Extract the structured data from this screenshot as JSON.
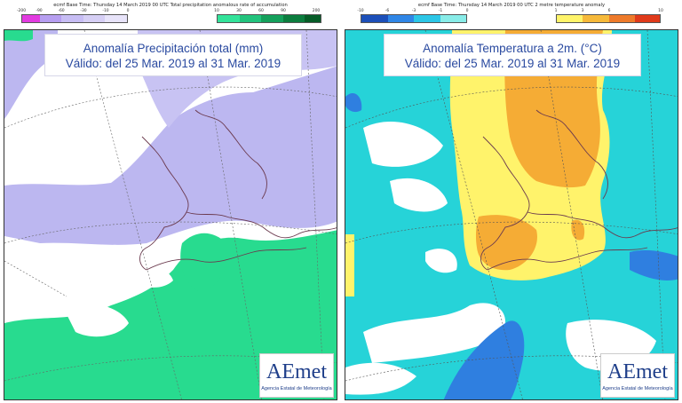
{
  "precipitation": {
    "header": "ecmf  Base Time: Thursday 14 March 2019 00 UTC Total precipitation anomalous rate of accumulation",
    "legend_ticks": [
      "-200",
      "-90",
      "-60",
      "-30",
      "-10",
      "0",
      "10",
      "30",
      "60",
      "90",
      "200"
    ],
    "legend_colors_negative": [
      "#e23be0",
      "#b69ef0",
      "#c7bdf4",
      "#d6cff5",
      "#e8e4fa"
    ],
    "legend_colors_positive": [
      "#33e39a",
      "#22c37d",
      "#14a05b",
      "#0b7d3e",
      "#065c27"
    ],
    "title_line1": "Anomalía Precipitación total (mm)",
    "title_line2": "Válido: del 25 Mar. 2019 al 31 Mar. 2019",
    "colors": {
      "wet": "#28db8f",
      "dry": "#b8b4ef",
      "neutral": "#ffffff"
    }
  },
  "temperature": {
    "header": "ecmf  Base Time: Thursday 14 March 2019 00 UTC 2 metre temperature anomaly",
    "legend_ticks": [
      "-10",
      "-6",
      "-3",
      "-1",
      "0",
      "1",
      "3",
      "6",
      "10"
    ],
    "legend_colors_negative": [
      "#1c4fb9",
      "#2f86e6",
      "#2cc6e6",
      "#88ece8"
    ],
    "legend_colors_positive": [
      "#fff46a",
      "#f6b93a",
      "#ee7a2a",
      "#e03a1a"
    ],
    "title_line1": "Anomalía Temperatura a 2m. (°C)",
    "title_line2": "Válido: del 25 Mar. 2019 al 31 Mar. 2019",
    "colors": {
      "cold": "#26d3d8",
      "very_cold": "#2f7fe0",
      "warm": "#fff36b",
      "very_warm": "#f5ac35",
      "neutral": "#ffffff"
    }
  },
  "logo": {
    "word": "AEmet",
    "subtitle": "Agencia Estatal de Meteorología"
  }
}
